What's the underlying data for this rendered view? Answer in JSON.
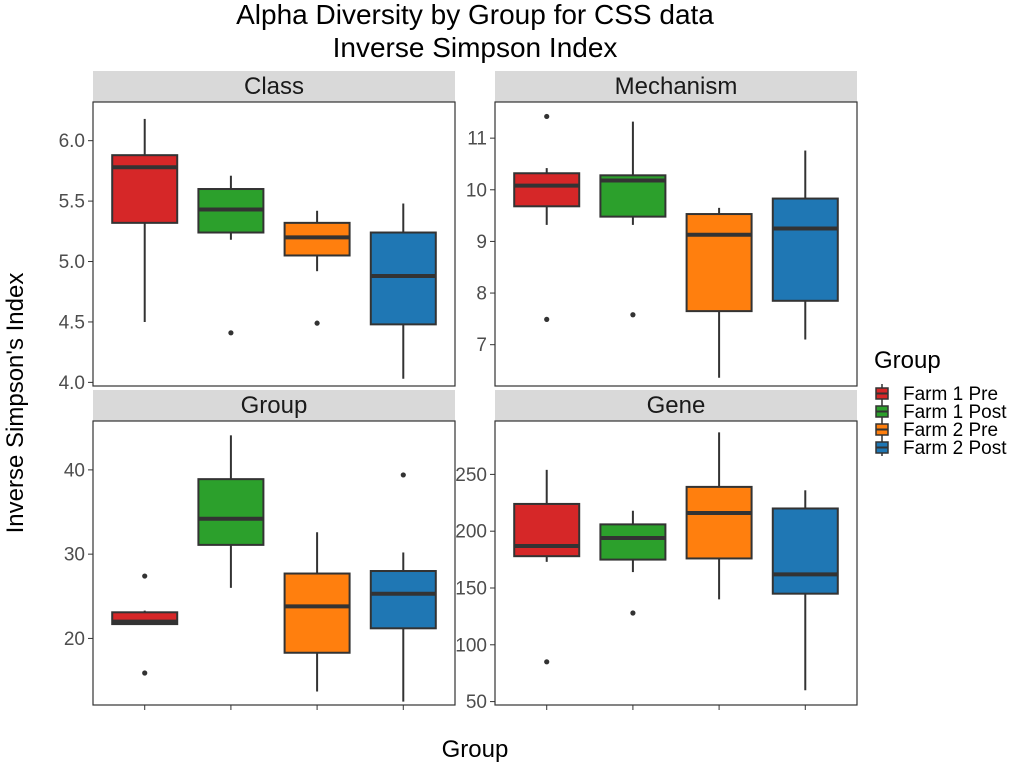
{
  "chart_data": {
    "type": "boxplot",
    "title": "Alpha Diversity by Group for CSS data",
    "subtitle": "Inverse Simpson Index",
    "xlabel": "Group",
    "ylabel": "Inverse Simpson's Index",
    "legend": {
      "title": "Group",
      "placement": "right",
      "entries": [
        {
          "name": "Farm 1 Pre",
          "color": "#d62728"
        },
        {
          "name": "Farm 1 Post",
          "color": "#2ca02c"
        },
        {
          "name": "Farm 2 Pre",
          "color": "#ff7f0e"
        },
        {
          "name": "Farm 2 Post",
          "color": "#1f77b4"
        }
      ]
    },
    "panels": [
      {
        "name": "Class",
        "ylim": [
          3.97,
          6.32
        ],
        "yticks": [
          4.0,
          4.5,
          5.0,
          5.5,
          6.0
        ],
        "tick_labels": [
          "4.0",
          "4.5",
          "5.0",
          "5.5",
          "6.0"
        ],
        "boxes": [
          {
            "group": "Farm 1 Pre",
            "lower_whisker": 4.5,
            "q1": 5.32,
            "median": 5.78,
            "q3": 5.88,
            "upper_whisker": 6.18,
            "outliers": []
          },
          {
            "group": "Farm 1 Post",
            "lower_whisker": 5.18,
            "q1": 5.24,
            "median": 5.43,
            "q3": 5.6,
            "upper_whisker": 5.71,
            "outliers": [
              4.41
            ]
          },
          {
            "group": "Farm 2 Pre",
            "lower_whisker": 4.92,
            "q1": 5.05,
            "median": 5.2,
            "q3": 5.32,
            "upper_whisker": 5.42,
            "outliers": [
              4.49
            ]
          },
          {
            "group": "Farm 2 Post",
            "lower_whisker": 4.03,
            "q1": 4.48,
            "median": 4.88,
            "q3": 5.24,
            "upper_whisker": 5.48,
            "outliers": []
          }
        ]
      },
      {
        "name": "Mechanism",
        "ylim": [
          6.2,
          11.7
        ],
        "yticks": [
          7,
          8,
          9,
          10,
          11
        ],
        "tick_labels": [
          "7",
          "8",
          "9",
          "10",
          "11"
        ],
        "boxes": [
          {
            "group": "Farm 1 Pre",
            "lower_whisker": 9.32,
            "q1": 9.68,
            "median": 10.08,
            "q3": 10.32,
            "upper_whisker": 10.42,
            "outliers": [
              11.42,
              7.49
            ]
          },
          {
            "group": "Farm 1 Post",
            "lower_whisker": 9.32,
            "q1": 9.48,
            "median": 10.18,
            "q3": 10.28,
            "upper_whisker": 11.32,
            "outliers": [
              7.58
            ]
          },
          {
            "group": "Farm 2 Pre",
            "lower_whisker": 6.36,
            "q1": 7.65,
            "median": 9.13,
            "q3": 9.53,
            "upper_whisker": 9.65,
            "outliers": []
          },
          {
            "group": "Farm 2 Post",
            "lower_whisker": 7.1,
            "q1": 7.85,
            "median": 9.25,
            "q3": 9.83,
            "upper_whisker": 10.76,
            "outliers": []
          }
        ]
      },
      {
        "name": "Group",
        "ylim": [
          12.1,
          45.8
        ],
        "yticks": [
          20,
          30,
          40
        ],
        "tick_labels": [
          "20",
          "30",
          "40"
        ],
        "boxes": [
          {
            "group": "Farm 1 Pre",
            "lower_whisker": 21.7,
            "q1": 21.7,
            "median": 22.0,
            "q3": 23.1,
            "upper_whisker": 23.3,
            "outliers": [
              27.4,
              15.9
            ]
          },
          {
            "group": "Farm 1 Post",
            "lower_whisker": 26.0,
            "q1": 31.1,
            "median": 34.2,
            "q3": 38.9,
            "upper_whisker": 44.1,
            "outliers": []
          },
          {
            "group": "Farm 2 Pre",
            "lower_whisker": 13.7,
            "q1": 18.3,
            "median": 23.8,
            "q3": 27.7,
            "upper_whisker": 32.6,
            "outliers": []
          },
          {
            "group": "Farm 2 Post",
            "lower_whisker": 12.5,
            "q1": 21.2,
            "median": 25.3,
            "q3": 28.0,
            "upper_whisker": 30.2,
            "outliers": [
              39.4
            ]
          }
        ]
      },
      {
        "name": "Gene",
        "ylim": [
          47,
          297
        ],
        "yticks": [
          50,
          100,
          150,
          200,
          250
        ],
        "tick_labels": [
          "50",
          "100",
          "150",
          "200",
          "250"
        ],
        "boxes": [
          {
            "group": "Farm 1 Pre",
            "lower_whisker": 173,
            "q1": 178,
            "median": 187,
            "q3": 224,
            "upper_whisker": 254,
            "outliers": [
              85
            ]
          },
          {
            "group": "Farm 1 Post",
            "lower_whisker": 164,
            "q1": 175,
            "median": 194,
            "q3": 206,
            "upper_whisker": 218,
            "outliers": [
              128
            ]
          },
          {
            "group": "Farm 2 Pre",
            "lower_whisker": 140,
            "q1": 176,
            "median": 216,
            "q3": 239,
            "upper_whisker": 287,
            "outliers": []
          },
          {
            "group": "Farm 2 Post",
            "lower_whisker": 60,
            "q1": 145,
            "median": 162,
            "q3": 220,
            "upper_whisker": 236,
            "outliers": []
          }
        ]
      }
    ],
    "grid": false,
    "colors": {
      "strip_bg": "#d9d9d9",
      "panel_border": "#333333",
      "box_line": "#333333"
    }
  }
}
